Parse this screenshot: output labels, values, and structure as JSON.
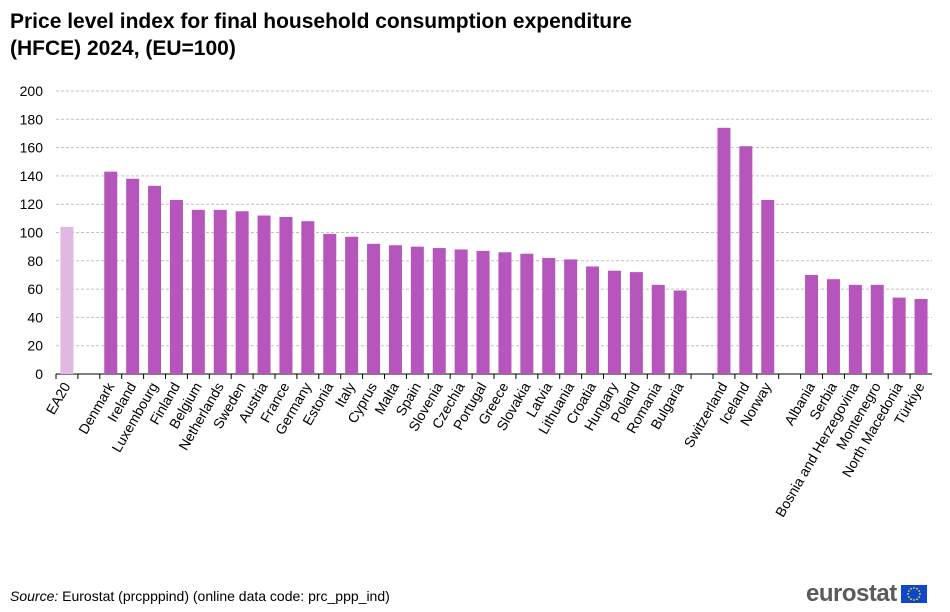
{
  "chart_data": {
    "type": "bar",
    "title": "Price level index for final household consumption expenditure (HFCE) 2024, (EU=100)",
    "title_lines": [
      "Price level index for final household consumption expenditure",
      "(HFCE) 2024, (EU=100)"
    ],
    "categories": [
      "EA20",
      "",
      "Denmark",
      "Ireland",
      "Luxembourg",
      "Finland",
      "Belgium",
      "Netherlands",
      "Sweden",
      "Austria",
      "France",
      "Germany",
      "Estonia",
      "Italy",
      "Cyprus",
      "Malta",
      "Spain",
      "Slovenia",
      "Czechia",
      "Portugal",
      "Greece",
      "Slovakia",
      "Latvia",
      "Lithuania",
      "Croatia",
      "Hungary",
      "Poland",
      "Romania",
      "Bulgaria",
      "",
      "Switzerland",
      "Iceland",
      "Norway",
      "",
      "Albania",
      "Serbia",
      "Bosnia and Herzegovina",
      "Montenegro",
      "North Macedonia",
      "Türkiye"
    ],
    "values": [
      104,
      null,
      143,
      138,
      133,
      123,
      116,
      116,
      115,
      112,
      111,
      108,
      99,
      97,
      92,
      91,
      90,
      89,
      88,
      87,
      86,
      85,
      82,
      81,
      76,
      73,
      72,
      63,
      59,
      null,
      174,
      161,
      123,
      null,
      70,
      67,
      63,
      63,
      54,
      53
    ],
    "highlight": [
      "EA20"
    ],
    "ylim": [
      0,
      200
    ],
    "yticks": [
      0,
      20,
      40,
      60,
      80,
      100,
      120,
      140,
      160,
      180,
      200
    ],
    "grid": true,
    "colors": {
      "bar": "#b656bd",
      "highlight": "#e0b8e3",
      "grid": "#c0c0c0"
    }
  },
  "source": {
    "label": "Source:",
    "text": " Eurostat (prcpppind) (online data code: prc_ppp_ind)"
  },
  "logo": {
    "text": "eurostat"
  }
}
